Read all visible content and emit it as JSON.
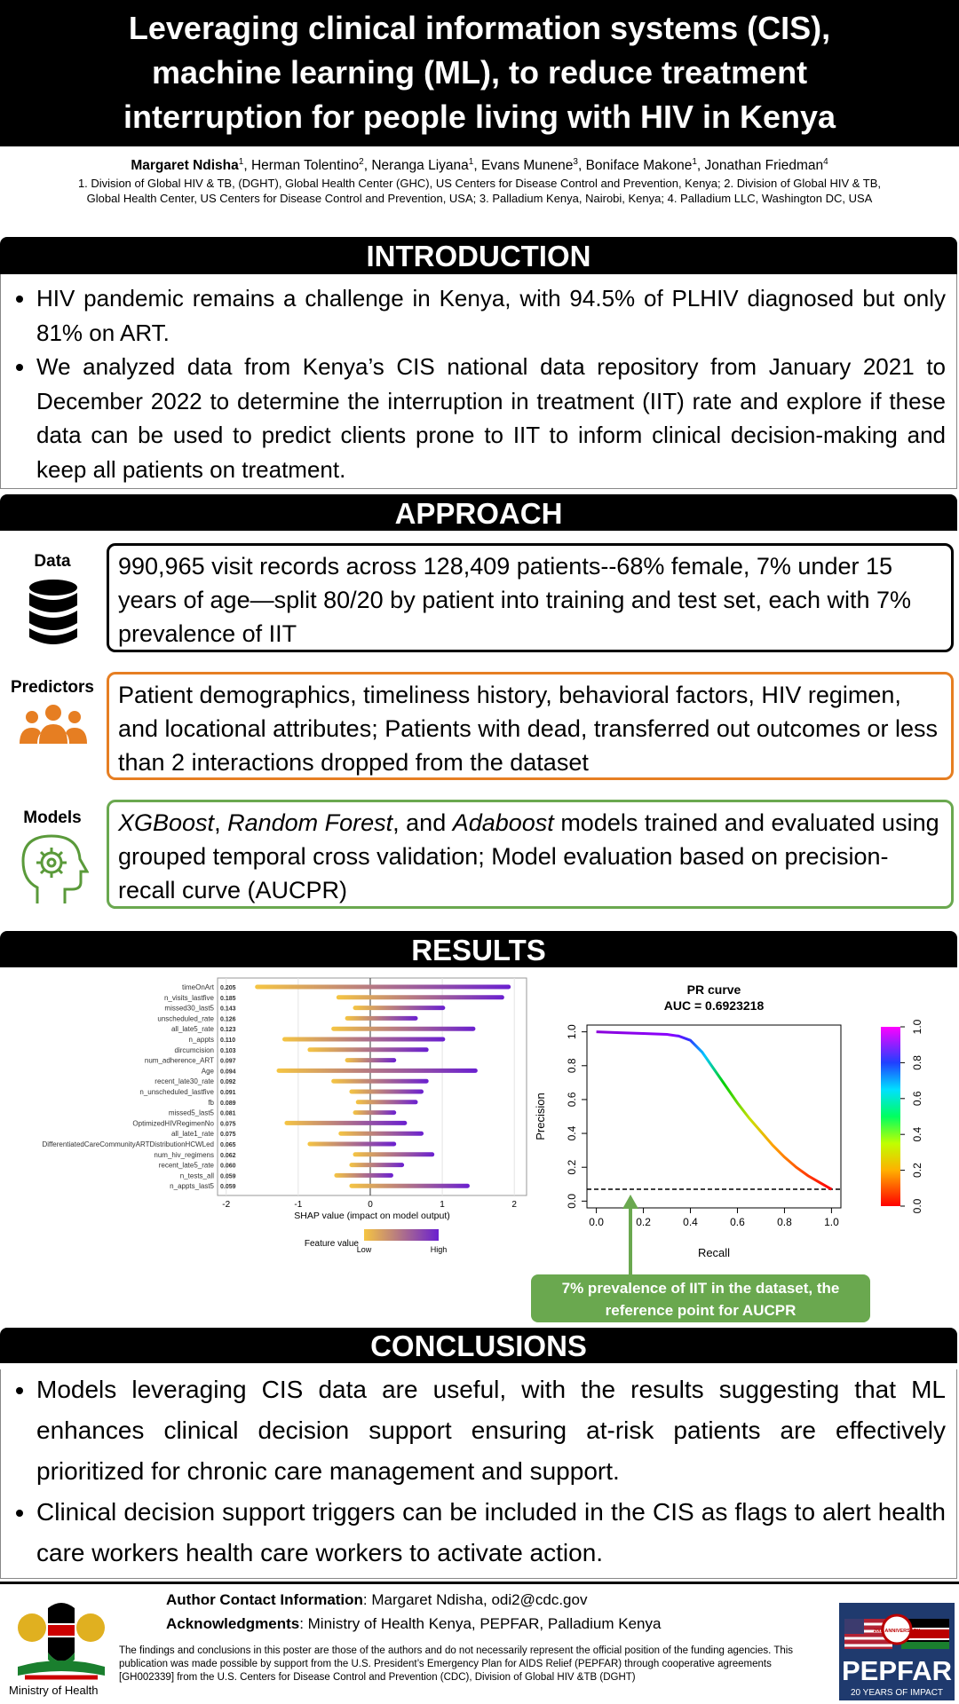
{
  "header": {
    "title_lines": [
      "Leveraging clinical information systems (CIS),",
      "machine learning (ML), to reduce treatment",
      "interruption for people living with HIV in Kenya"
    ],
    "authors": [
      {
        "name": "Margaret Ndisha",
        "sup": "1"
      },
      {
        "name": "Herman Tolentino",
        "sup": "2"
      },
      {
        "name": "Neranga Liyana",
        "sup": "1"
      },
      {
        "name": "Evans Munene",
        "sup": "3"
      },
      {
        "name": "Boniface Makone",
        "sup": "1"
      },
      {
        "name": "Jonathan Friedman",
        "sup": "4"
      }
    ],
    "author_separator": ", ",
    "affiliations": [
      "1. Division of Global HIV & TB, (DGHT), Global Health Center (GHC), US Centers for Disease Control and Prevention, Kenya; 2. Division of Global HIV & TB,",
      "Global Health Center, US Centers for Disease Control and Prevention, USA; 3. Palladium Kenya, Nairobi, Kenya; 4. Palladium LLC, Washington DC, USA"
    ]
  },
  "introduction": {
    "heading": "INTRODUCTION",
    "bullets": [
      "HIV pandemic remains a challenge in Kenya, with 94.5% of PLHIV diagnosed but only 81% on ART.",
      "We analyzed data from Kenya’s CIS national data repository from January 2021 to December 2022 to determine the interruption in treatment (IIT) rate and explore if these data can be used to predict clients prone to IIT to inform clinical decision-making and keep all patients on treatment."
    ]
  },
  "approach": {
    "heading": "APPROACH",
    "data": {
      "label": "Data",
      "text": "990,965 visit records across 128,409 patients--68% female, 7% under 15 years of age—split 80/20 by patient into training and test set, each with 7% prevalence of IIT"
    },
    "predictors": {
      "label": "Predictors",
      "text": "Patient demographics, timeliness history, behavioral factors, HIV regimen, and locational attributes; Patients with dead, transferred out outcomes or less than 2 interactions dropped from the dataset"
    },
    "models": {
      "label": "Models",
      "text_parts": [
        {
          "text": "XGBoost",
          "italic": true
        },
        {
          "text": ", "
        },
        {
          "text": "Random Forest",
          "italic": true
        },
        {
          "text": ", and "
        },
        {
          "text": "Adaboost",
          "italic": true
        },
        {
          "text": " models trained and evaluated using grouped temporal cross validation; Model evaluation based on precision-recall curve (AUCPR)"
        }
      ]
    }
  },
  "results": {
    "heading": "RESULTS",
    "shap": {
      "xlabel": "SHAP value (impact on model output)",
      "xlim": [
        -2.12,
        2.17
      ],
      "xticks": [
        -2,
        -1,
        0,
        1,
        2
      ],
      "legend_title": "Feature value",
      "legend_low": "Low",
      "legend_high": "High",
      "features": [
        {
          "name": "timeOnArt",
          "value_label": "0.205",
          "range": [
            -1.6,
            1.95
          ]
        },
        {
          "name": "n_visits_lastfive",
          "value_label": "0.185",
          "range": [
            -0.47,
            1.86
          ]
        },
        {
          "name": "missed30_last5",
          "value_label": "0.143",
          "range": [
            -0.24,
            1.04
          ]
        },
        {
          "name": "unscheduled_rate",
          "value_label": "0.126",
          "range": [
            -0.35,
            0.66
          ]
        },
        {
          "name": "all_late5_rate",
          "value_label": "0.123",
          "range": [
            -0.54,
            1.46
          ]
        },
        {
          "name": "n_appts",
          "value_label": "0.110",
          "range": [
            -1.22,
            1.04
          ]
        },
        {
          "name": "dircumcision",
          "value_label": "0.103",
          "range": [
            -0.87,
            0.81
          ]
        },
        {
          "name": "num_adherence_ART",
          "value_label": "0.097",
          "range": [
            -0.35,
            0.36
          ]
        },
        {
          "name": "Age",
          "value_label": "0.094",
          "range": [
            -1.3,
            1.49
          ]
        },
        {
          "name": "recent_late30_rate",
          "value_label": "0.092",
          "range": [
            -0.54,
            0.81
          ]
        },
        {
          "name": "n_unscheduled_lastfive",
          "value_label": "0.091",
          "range": [
            -0.29,
            0.74
          ]
        },
        {
          "name": "fb",
          "value_label": "0.089",
          "range": [
            -0.2,
            0.66
          ]
        },
        {
          "name": "missed5_last5",
          "value_label": "0.081",
          "range": [
            -0.24,
            0.36
          ]
        },
        {
          "name": "OptimizedHIVRegimenNo",
          "value_label": "0.075",
          "range": [
            -1.19,
            0.51
          ]
        },
        {
          "name": "all_late1_rate",
          "value_label": "0.075",
          "range": [
            -0.44,
            0.74
          ]
        },
        {
          "name": "DifferentiatedCareCommunityARTDistributionHCWLed",
          "value_label": "0.065",
          "range": [
            -0.87,
            0.36
          ]
        },
        {
          "name": "num_hiv_regimens",
          "value_label": "0.062",
          "range": [
            -0.24,
            0.89
          ]
        },
        {
          "name": "recent_late5_rate",
          "value_label": "0.060",
          "range": [
            -0.29,
            0.47
          ]
        },
        {
          "name": "n_tests_all",
          "value_label": "0.059",
          "range": [
            -0.5,
            0.32
          ]
        },
        {
          "name": "n_appts_last5",
          "value_label": "0.059",
          "range": [
            -0.29,
            1.38
          ]
        }
      ]
    },
    "pr": {
      "title": "PR curve",
      "subtitle": "AUC = 0.6923218",
      "xlabel": "Recall",
      "ylabel": "Precision",
      "xlim": [
        -0.04,
        1.04
      ],
      "ylim": [
        -0.04,
        1.04
      ],
      "xticks": [
        {
          "value": 0,
          "label": "0.0"
        },
        {
          "value": 0.2,
          "label": "0.2"
        },
        {
          "value": 0.4,
          "label": "0.4"
        },
        {
          "value": 0.6,
          "label": "0.6"
        },
        {
          "value": 0.8,
          "label": "0.8"
        },
        {
          "value": 1,
          "label": "1.0"
        }
      ],
      "yticks": [
        {
          "value": 0,
          "label": "0.0"
        },
        {
          "value": 0.2,
          "label": "0.2"
        },
        {
          "value": 0.4,
          "label": "0.4"
        },
        {
          "value": 0.6,
          "label": "0.6"
        },
        {
          "value": 0.8,
          "label": "0.8"
        },
        {
          "value": 1,
          "label": "1.0"
        }
      ],
      "colorbar_ticks": [
        {
          "value": 0,
          "label": "0.0"
        },
        {
          "value": 0.2,
          "label": "0.2"
        },
        {
          "value": 0.4,
          "label": "0.4"
        },
        {
          "value": 0.6,
          "label": "0.6"
        },
        {
          "value": 0.8,
          "label": "0.8"
        },
        {
          "value": 1,
          "label": "1.0"
        }
      ],
      "recall": [
        0,
        0.1,
        0.2,
        0.3,
        0.35,
        0.4,
        0.45,
        0.5,
        0.55,
        0.6,
        0.65,
        0.7,
        0.75,
        0.8,
        0.85,
        0.9,
        0.95,
        1
      ],
      "precision": [
        1,
        0.995,
        0.99,
        0.985,
        0.975,
        0.95,
        0.88,
        0.78,
        0.68,
        0.58,
        0.49,
        0.41,
        0.33,
        0.26,
        0.2,
        0.15,
        0.11,
        0.07
      ],
      "baseline": 0.07
    },
    "callout": "7% prevalence of IIT in the dataset, the reference point for AUCPR"
  },
  "conclusions": {
    "heading": "CONCLUSIONS",
    "bullets": [
      "Models leveraging CIS data are useful, with the results suggesting that ML enhances clinical decision support ensuring at-risk patients are effectively prioritized for chronic care management and support.",
      "Clinical decision support triggers can be included in the CIS as flags to alert health care workers health care workers to activate action."
    ]
  },
  "footer": {
    "contact_label": "Author Contact Information",
    "contact_text": ": Margaret Ndisha, odi2@cdc.gov",
    "ack_label": "Acknowledgments",
    "ack_text": ": Ministry of Health Kenya, PEPFAR, Palladium Kenya",
    "disclaimer": "The findings and conclusions in this poster are those of the authors and do not necessarily represent the official position of the funding agencies. This publication was made possible by support from the U.S. President’s Emergency Plan for AIDS Relief (PEPFAR) through cooperative agreements [GH002339] from the U.S. Centers for Disease Control and Prevention (CDC), Division of Global HIV &TB (DGHT)",
    "ministry": "Ministry of Health",
    "pepfar_name": "PEPFAR",
    "pepfar_tagline": "20 YEARS OF IMPACT",
    "pepfar_badge": "20th ANNIVERSARY"
  }
}
